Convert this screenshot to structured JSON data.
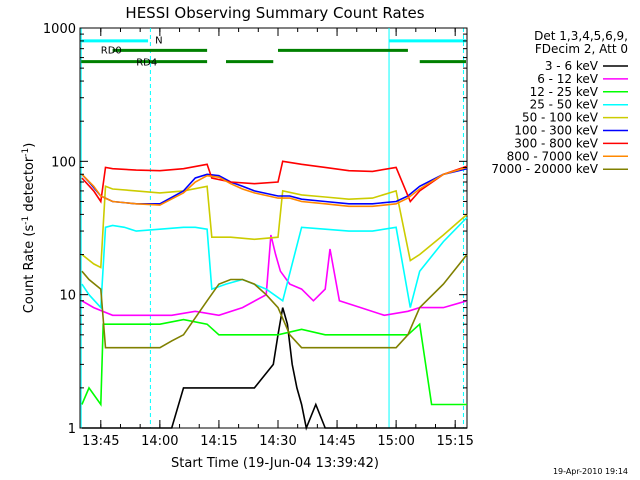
{
  "chart_data": {
    "type": "line",
    "title": "HESSI Observing Summary Count Rates",
    "xlabel": "Start Time (19-Jun-04 13:39:42)",
    "ylabel": "Count Rate (s",
    "ylabel_sup1": "-1",
    "ylabel_mid": " detector",
    "ylabel_sup2": "-1",
    "ylabel_end": ")",
    "yscale": "log",
    "ylim": [
      1,
      1000
    ],
    "xlim": [
      13.662,
      15.3
    ],
    "x_ticks": [
      {
        "v": 13.75,
        "label": "13:45"
      },
      {
        "v": 14.0,
        "label": "14:00"
      },
      {
        "v": 14.25,
        "label": "14:15"
      },
      {
        "v": 14.5,
        "label": "14:30"
      },
      {
        "v": 14.75,
        "label": "14:45"
      },
      {
        "v": 15.0,
        "label": "15:00"
      },
      {
        "v": 15.25,
        "label": "15:15"
      }
    ],
    "y_ticks": [
      {
        "v": 1,
        "label": "1"
      },
      {
        "v": 10,
        "label": "10"
      },
      {
        "v": 100,
        "label": "100"
      },
      {
        "v": 1000,
        "label": "1000"
      }
    ],
    "legend_header": [
      "Det 1,3,4,5,6,9,",
      "FDecim 2, Att 0"
    ],
    "series": [
      {
        "name": "3 - 6 keV",
        "color": "#000000",
        "x": [
          13.67,
          13.9,
          14.05,
          14.1,
          14.2,
          14.3,
          14.4,
          14.48,
          14.5,
          14.52,
          14.54,
          14.56,
          14.58,
          14.6,
          14.62,
          14.66,
          14.7,
          14.9,
          15.1,
          15.3
        ],
        "y": [
          1,
          1,
          1,
          2,
          2,
          2,
          2,
          3,
          5,
          8,
          6,
          3,
          2,
          1.5,
          1,
          1.5,
          1,
          1,
          1,
          1
        ]
      },
      {
        "name": "6 - 12 keV",
        "color": "#ff00ff",
        "x": [
          13.67,
          13.72,
          13.8,
          13.86,
          13.96,
          14.05,
          14.15,
          14.25,
          14.35,
          14.45,
          14.47,
          14.49,
          14.51,
          14.55,
          14.6,
          14.65,
          14.7,
          14.72,
          14.76,
          14.85,
          14.95,
          15.05,
          15.1,
          15.2,
          15.3
        ],
        "y": [
          9,
          8,
          7,
          7,
          7,
          7,
          7.5,
          7,
          8,
          10,
          28,
          20,
          15,
          12,
          11,
          9,
          11,
          22,
          9,
          8,
          7,
          7.5,
          8,
          8,
          9
        ]
      },
      {
        "name": "12 - 25 keV",
        "color": "#00ff00",
        "x": [
          13.67,
          13.7,
          13.75,
          13.76,
          13.8,
          13.9,
          14.0,
          14.1,
          14.2,
          14.25,
          14.3,
          14.4,
          14.5,
          14.6,
          14.7,
          14.8,
          14.9,
          15.0,
          15.05,
          15.1,
          15.15,
          15.2,
          15.3
        ],
        "y": [
          1.5,
          2,
          1.5,
          6,
          6,
          6,
          6,
          6.5,
          6,
          5,
          5,
          5,
          5,
          5.5,
          5,
          5,
          5,
          5,
          5,
          6,
          1.5,
          1.5,
          1.5
        ]
      },
      {
        "name": "25 - 50 keV",
        "color": "#00ffff",
        "x": [
          13.67,
          13.7,
          13.75,
          13.77,
          13.8,
          13.85,
          13.9,
          14.0,
          14.1,
          14.15,
          14.2,
          14.22,
          14.28,
          14.35,
          14.45,
          14.52,
          14.6,
          14.7,
          14.8,
          14.9,
          15.0,
          15.06,
          15.1,
          15.2,
          15.3
        ],
        "y": [
          12,
          10,
          8,
          32,
          33,
          32,
          30,
          31,
          32,
          32,
          31,
          11,
          12,
          13,
          11,
          9,
          32,
          31,
          30,
          30,
          32,
          8,
          15,
          25,
          38
        ]
      },
      {
        "name": "50 - 100 keV",
        "color": "#cccc00",
        "x": [
          13.67,
          13.72,
          13.75,
          13.77,
          13.8,
          13.9,
          14.0,
          14.1,
          14.2,
          14.22,
          14.3,
          14.4,
          14.5,
          14.52,
          14.6,
          14.7,
          14.8,
          14.9,
          15.0,
          15.06,
          15.1,
          15.2,
          15.3
        ],
        "y": [
          20,
          17,
          16,
          65,
          62,
          60,
          58,
          60,
          65,
          27,
          27,
          26,
          27,
          60,
          56,
          54,
          52,
          53,
          60,
          18,
          20,
          28,
          40
        ]
      },
      {
        "name": "100 - 300 keV",
        "color": "#0000ff",
        "x": [
          13.67,
          13.7,
          13.75,
          13.8,
          13.9,
          14.0,
          14.1,
          14.15,
          14.2,
          14.25,
          14.3,
          14.35,
          14.4,
          14.5,
          14.55,
          14.6,
          14.7,
          14.8,
          14.9,
          15.0,
          15.05,
          15.1,
          15.2,
          15.3
        ],
        "y": [
          80,
          70,
          55,
          50,
          48,
          48,
          60,
          75,
          80,
          78,
          70,
          65,
          60,
          55,
          55,
          52,
          50,
          48,
          48,
          50,
          55,
          65,
          80,
          88
        ]
      },
      {
        "name": "300 - 800 keV",
        "color": "#ff0000",
        "x": [
          13.67,
          13.72,
          13.75,
          13.77,
          13.8,
          13.9,
          14.0,
          14.1,
          14.2,
          14.22,
          14.3,
          14.4,
          14.5,
          14.52,
          14.6,
          14.7,
          14.8,
          14.9,
          15.0,
          15.06,
          15.1,
          15.2,
          15.3
        ],
        "y": [
          75,
          60,
          50,
          90,
          88,
          86,
          85,
          88,
          95,
          75,
          70,
          68,
          70,
          100,
          95,
          90,
          85,
          84,
          90,
          50,
          60,
          80,
          92
        ]
      },
      {
        "name": "800 - 7000 keV",
        "color": "#ff8800",
        "x": [
          13.67,
          13.72,
          13.75,
          13.8,
          13.9,
          14.0,
          14.1,
          14.15,
          14.2,
          14.25,
          14.3,
          14.35,
          14.4,
          14.5,
          14.55,
          14.6,
          14.7,
          14.8,
          14.9,
          15.0,
          15.05,
          15.1,
          15.2,
          15.3
        ],
        "y": [
          80,
          65,
          55,
          50,
          48,
          47,
          58,
          70,
          78,
          76,
          68,
          62,
          58,
          53,
          53,
          50,
          48,
          46,
          46,
          48,
          53,
          62,
          80,
          90
        ]
      },
      {
        "name": "7000 - 20000 keV",
        "color": "#808000",
        "x": [
          13.67,
          13.7,
          13.75,
          13.77,
          13.8,
          13.9,
          14.0,
          14.05,
          14.1,
          14.2,
          14.25,
          14.3,
          14.35,
          14.4,
          14.45,
          14.5,
          14.55,
          14.6,
          14.7,
          14.8,
          14.9,
          15.0,
          15.05,
          15.1,
          15.2,
          15.3
        ],
        "y": [
          15,
          13,
          11,
          4,
          4,
          4,
          4,
          4.5,
          5,
          9,
          12,
          13,
          13,
          12,
          10,
          8,
          5,
          4,
          4,
          4,
          4,
          4,
          5,
          8,
          12,
          20
        ]
      }
    ],
    "vlines": [
      {
        "x": 13.667,
        "style": "solid"
      },
      {
        "x": 13.96,
        "style": "dashed"
      },
      {
        "x": 14.97,
        "style": "solid"
      },
      {
        "x": 15.285,
        "style": "dashed"
      }
    ],
    "bars": [
      {
        "label": "N",
        "color": "#00ffff",
        "y_level": 800,
        "segments": [
          [
            13.667,
            13.95
          ],
          [
            14.97,
            15.3
          ]
        ],
        "label_x": 13.98,
        "label_y": 820
      },
      {
        "label": "RD0",
        "color": "#008000",
        "y_level": 680,
        "segments": [
          [
            13.8,
            14.2
          ],
          [
            14.5,
            15.05
          ]
        ],
        "label_x": 13.75,
        "label_y": 690
      },
      {
        "label": "RD4",
        "color": "#008000",
        "y_level": 560,
        "segments": [
          [
            13.667,
            14.2
          ],
          [
            14.28,
            14.48
          ],
          [
            15.1,
            15.3
          ]
        ],
        "label_x": 13.9,
        "label_y": 560
      }
    ]
  },
  "footer_timestamp": "19-Apr-2010 19:14"
}
